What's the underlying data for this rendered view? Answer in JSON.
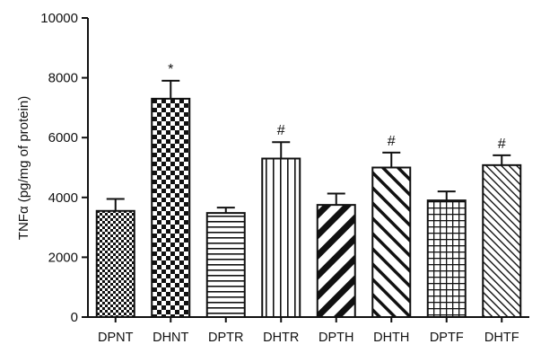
{
  "chart_data": {
    "type": "bar",
    "title": "",
    "xlabel": "",
    "ylabel": "TNFα (pg/mg of protein)",
    "ylim": [
      0,
      10000
    ],
    "yticks": [
      0,
      2000,
      4000,
      6000,
      8000,
      10000
    ],
    "categories": [
      "DPNT",
      "DHNT",
      "DPTR",
      "DHTR",
      "DPTH",
      "DHTH",
      "DPTF",
      "DHTF"
    ],
    "values": [
      3550,
      7300,
      3480,
      5300,
      3750,
      5000,
      3900,
      5080
    ],
    "errors": [
      400,
      600,
      180,
      550,
      380,
      500,
      300,
      330
    ],
    "annotations": [
      "",
      "*",
      "",
      "#",
      "",
      "#",
      "",
      "#"
    ],
    "patterns": [
      "checker-small",
      "checker-large",
      "horizontal-lines",
      "vertical-lines",
      "diagonal-wide",
      "diagonal-thin",
      "grid",
      "diagonal-fine"
    ],
    "grid": false,
    "legend": "none"
  }
}
